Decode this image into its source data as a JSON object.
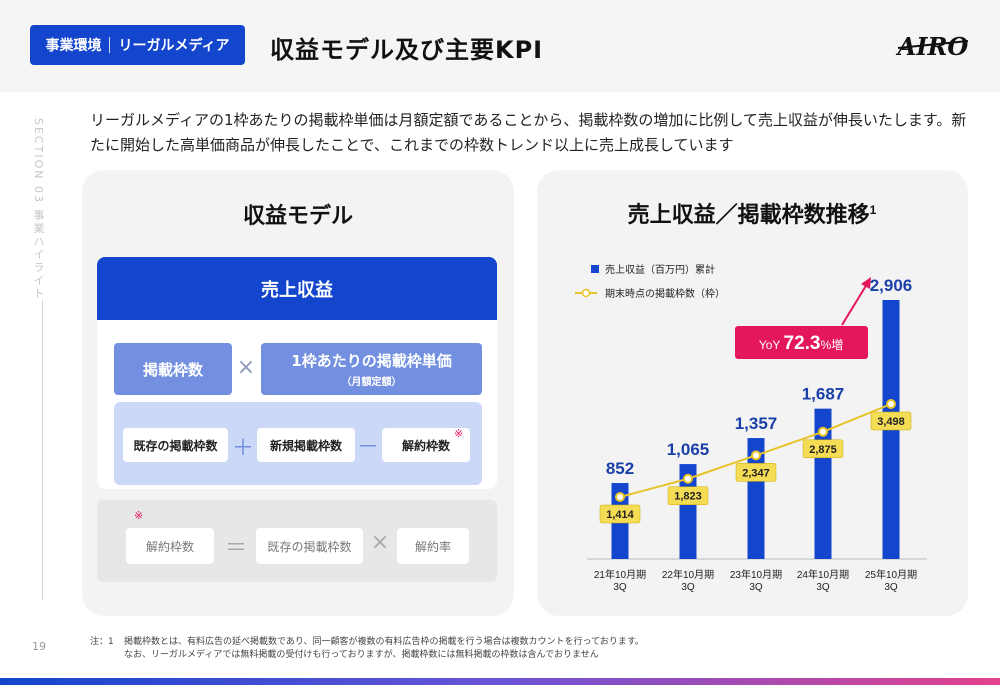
{
  "header": {
    "badge_left": "事業環境",
    "badge_right": "リーガルメディア",
    "title": "収益モデル及び主要KPI",
    "logo_text": "AIRO"
  },
  "side": {
    "section": "SECTION 03 事業ハイライト",
    "page": "19"
  },
  "intro": "リーガルメディアの1枠あたりの掲載枠単価は月額定額であることから、掲載枠数の増加に比例して売上収益が伸長いたします。新たに開始した高単価商品が伸長したことで、これまでの枠数トレンド以上に売上成長しています",
  "model": {
    "title": "収益モデル",
    "revenue": "売上収益",
    "slots": "掲載枠数",
    "unit_price": "1枠あたりの掲載枠単価",
    "unit_price_note": "（月額定額）",
    "times": "×",
    "existing": "既存の掲載枠数",
    "plus": "＋",
    "new": "新規掲載枠数",
    "minus": "－",
    "cancel": "解約枠数",
    "note_mark": "※",
    "formula": {
      "left": "解約枠数",
      "equals": "＝",
      "mid": "既存の掲載枠数",
      "times": "×",
      "right": "解約率"
    }
  },
  "chart_title": "売上収益／掲載枠数推移",
  "chart_title_sup": "1",
  "chart_data": {
    "type": "bar",
    "categories": [
      "21年10月期\n3Q",
      "22年10月期\n3Q",
      "23年10月期\n3Q",
      "24年10月期\n3Q",
      "25年10月期\n3Q"
    ],
    "series": [
      {
        "name": "売上収益（百万円）累計",
        "type": "bar",
        "values": [
          852,
          1065,
          1357,
          1687,
          2906
        ],
        "labels": [
          "852",
          "1,065",
          "1,357",
          "1,687",
          "2,906"
        ]
      },
      {
        "name": "期末時点の掲載枠数（枠）",
        "type": "line",
        "values": [
          1414,
          1823,
          2347,
          2875,
          3498
        ],
        "labels": [
          "1,414",
          "1,823",
          "2,347",
          "2,875",
          "3,498"
        ]
      }
    ],
    "callout": {
      "prefix": "YoY ",
      "value": "72.3",
      "suffix": "%増"
    },
    "legend_position": "top-left",
    "colors": {
      "bar": "#1346cc",
      "line": "#e8c42a",
      "label_box": "#f5dc55",
      "callout": "#e4165c"
    }
  },
  "footnote": {
    "label": "注：1",
    "line1": "掲載枠数とは、有料広告の延べ掲載数であり、同一顧客が複数の有料広告枠の掲載を行う場合は複数カウントを行っております。",
    "line2": "なお、リーガルメディアでは無料掲載の受付けも行っておりますが、掲載枠数には無料掲載の枠数は含んでおりません"
  }
}
